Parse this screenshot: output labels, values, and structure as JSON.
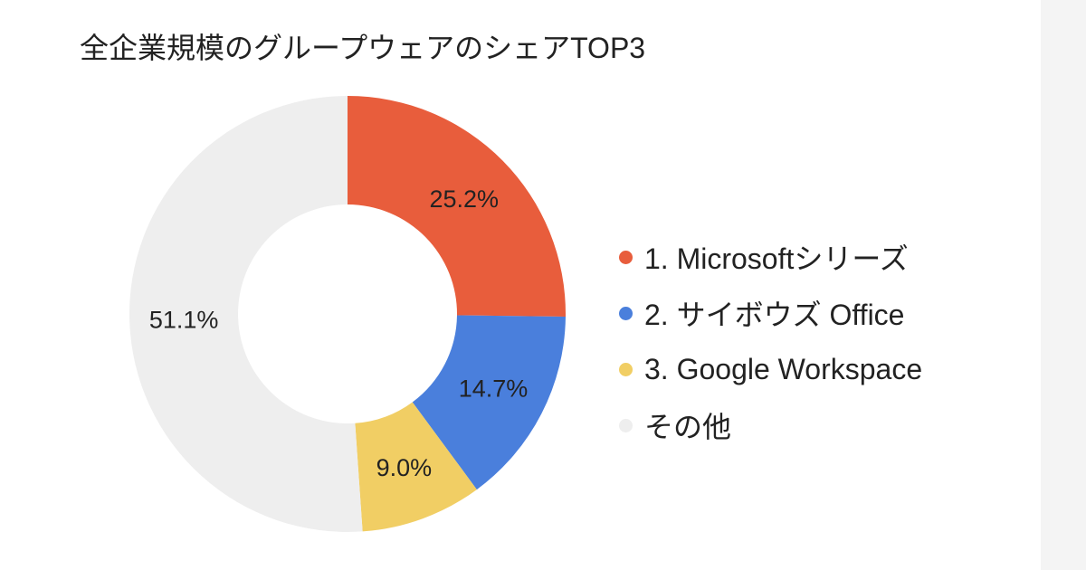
{
  "chart_data": {
    "type": "pie",
    "title": "全企業規模のグループウェアのシェアTOP3",
    "legend_position": "right",
    "slices": [
      {
        "name": "1. Microsoftシリーズ",
        "value": 25.2,
        "label": "25.2%",
        "color": "#e85d3c"
      },
      {
        "name": "2. サイボウズ Office",
        "value": 14.7,
        "label": "14.7%",
        "color": "#4a7fdc"
      },
      {
        "name": "3. Google Workspace",
        "value": 9.0,
        "label": "9.0%",
        "color": "#f1ce64"
      },
      {
        "name": "その他",
        "value": 51.1,
        "label": "51.1%",
        "color": "#eeeeee"
      }
    ]
  }
}
